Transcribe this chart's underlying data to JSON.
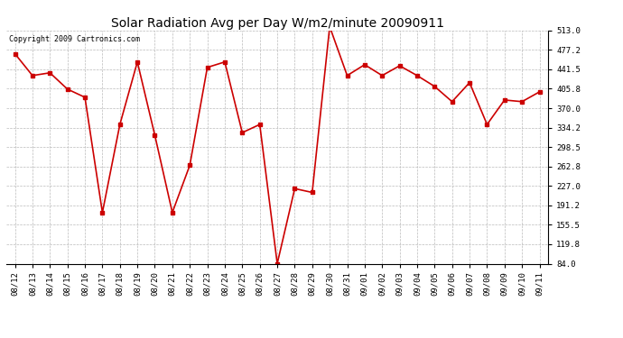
{
  "title": "Solar Radiation Avg per Day W/m2/minute 20090911",
  "copyright": "Copyright 2009 Cartronics.com",
  "labels": [
    "08/12",
    "08/13",
    "08/14",
    "08/15",
    "08/16",
    "08/17",
    "08/18",
    "08/19",
    "08/20",
    "08/21",
    "08/22",
    "08/23",
    "08/24",
    "08/25",
    "08/26",
    "08/27",
    "08/28",
    "08/29",
    "08/30",
    "08/31",
    "09/01",
    "09/02",
    "09/03",
    "09/04",
    "09/05",
    "09/06",
    "09/07",
    "09/08",
    "09/09",
    "09/10",
    "09/11"
  ],
  "values": [
    470,
    430,
    435,
    405,
    390,
    178,
    340,
    455,
    320,
    178,
    265,
    445,
    455,
    325,
    340,
    84,
    222,
    215,
    520,
    430,
    450,
    430,
    448,
    430,
    410,
    382,
    417,
    340,
    385,
    382,
    400
  ],
  "line_color": "#cc0000",
  "marker": "s",
  "marker_size": 2.5,
  "bg_color": "#ffffff",
  "grid_color": "#bbbbbb",
  "yticks": [
    84.0,
    119.8,
    155.5,
    191.2,
    227.0,
    262.8,
    298.5,
    334.2,
    370.0,
    405.8,
    441.5,
    477.2,
    513.0
  ],
  "ylim": [
    84.0,
    513.0
  ],
  "title_fontsize": 10,
  "copyright_fontsize": 6,
  "tick_fontsize": 6.5
}
